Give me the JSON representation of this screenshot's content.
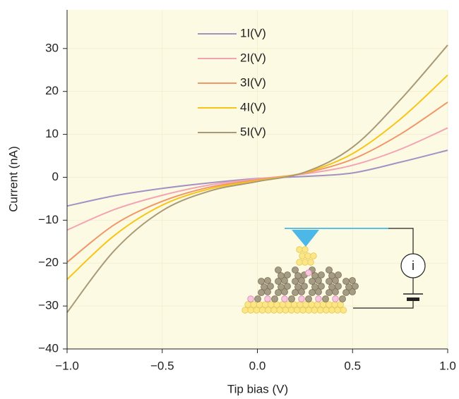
{
  "chart_data": {
    "type": "line",
    "x_label": "Tip bias (V)",
    "y_label": "Current (nA)",
    "x": [
      -1.0,
      -0.75,
      -0.5,
      -0.25,
      0,
      0.25,
      0.5,
      0.75,
      1.0
    ],
    "series": [
      {
        "name": "1I(V)",
        "color": "#a391c4",
        "values": [
          -6.7,
          -4.3,
          -2.6,
          -1.3,
          -0.3,
          0.2,
          1.0,
          3.5,
          6.3
        ]
      },
      {
        "name": "2I(V)",
        "color": "#f4a3b3",
        "values": [
          -12.3,
          -7.5,
          -4.2,
          -1.8,
          -0.4,
          0.8,
          2.8,
          6.5,
          11.5
        ]
      },
      {
        "name": "3I(V)",
        "color": "#f0966a",
        "values": [
          -19.8,
          -11.0,
          -5.6,
          -2.3,
          -0.6,
          1.0,
          4.2,
          10.0,
          17.5
        ]
      },
      {
        "name": "4I(V)",
        "color": "#f5c518",
        "values": [
          -23.8,
          -13.5,
          -6.5,
          -2.7,
          -0.8,
          1.1,
          5.5,
          13.5,
          23.8
        ]
      },
      {
        "name": "5I(V)",
        "color": "#a89a78",
        "values": [
          -31.5,
          -17.0,
          -7.8,
          -3.2,
          -1.0,
          1.2,
          7.0,
          18.0,
          30.8
        ]
      }
    ],
    "xlim": [
      -1.0,
      1.0
    ],
    "ylim": [
      -40,
      39
    ],
    "xticks": [
      {
        "value": -1.0,
        "label": "−1.0"
      },
      {
        "value": -0.5,
        "label": "−0.5"
      },
      {
        "value": 0,
        "label": "0.0"
      },
      {
        "value": 0.5,
        "label": "0.5"
      },
      {
        "value": 1.0,
        "label": "1.0"
      }
    ],
    "yticks": [
      {
        "value": -40,
        "label": "−40"
      },
      {
        "value": -30,
        "label": "−30"
      },
      {
        "value": -20,
        "label": "−20"
      },
      {
        "value": -10,
        "label": "−10"
      },
      0,
      10,
      20,
      30
    ],
    "grid": true,
    "plot_background": "#fdfae3"
  }
}
